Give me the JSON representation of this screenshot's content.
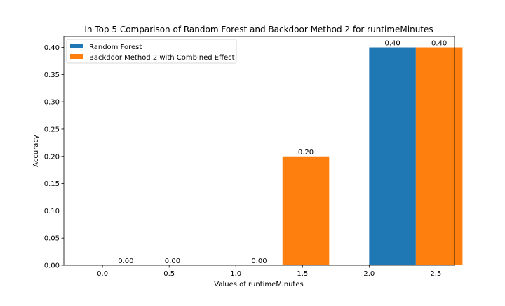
{
  "chart_data": {
    "type": "bar",
    "title": "In Top 5 Comparison of Random Forest and Backdoor Method 2 for runtimeMinutes",
    "xlabel": "Values of runtimeMinutes",
    "ylabel": "Accuracy",
    "categories": [
      "0.0",
      "1.0",
      "2.0"
    ],
    "series": [
      {
        "name": "Random Forest",
        "color": "#1f77b4",
        "values": [
          0.0,
          0.0,
          0.4
        ],
        "labels": [
          "0.00",
          "0.00",
          "0.40"
        ]
      },
      {
        "name": "Backdoor Method 2 with Combined Effect",
        "color": "#ff7f0e",
        "values": [
          0.0,
          0.2,
          0.4
        ],
        "labels": [
          "0.00",
          "0.20",
          "0.40"
        ]
      }
    ],
    "x_axis": {
      "range": [
        -0.29,
        2.64
      ],
      "ticks": [
        0.0,
        0.5,
        1.0,
        1.5,
        2.0,
        2.5
      ],
      "tick_labels": [
        "0.0",
        "0.5",
        "1.0",
        "1.5",
        "2.0",
        "2.5"
      ]
    },
    "y_axis": {
      "range": [
        0,
        0.42
      ],
      "ticks": [
        0.0,
        0.05,
        0.1,
        0.15,
        0.2,
        0.25,
        0.3,
        0.35,
        0.4
      ],
      "tick_labels": [
        "0.00",
        "0.05",
        "0.10",
        "0.15",
        "0.20",
        "0.25",
        "0.30",
        "0.35",
        "0.40"
      ]
    },
    "bar_width": 0.35,
    "grid": false,
    "legend_position": "top-left"
  }
}
